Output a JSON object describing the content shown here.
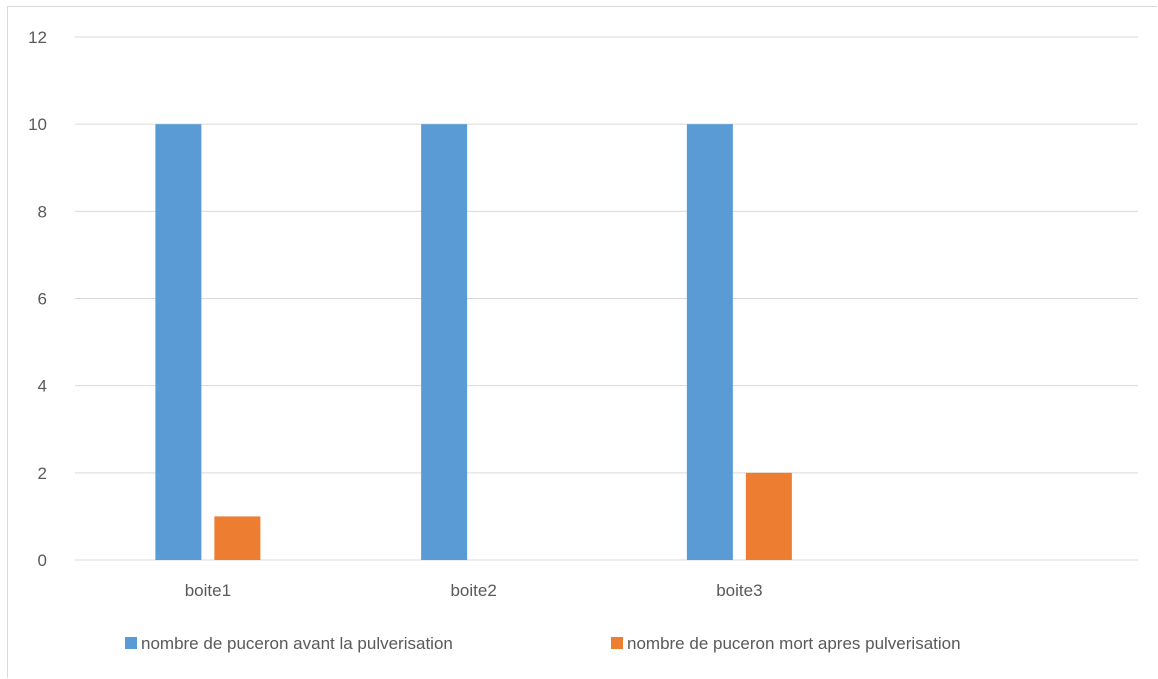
{
  "chart_data": {
    "type": "bar",
    "title": "",
    "xlabel": "",
    "ylabel": "",
    "categories": [
      "boite1",
      "boite2",
      "boite3",
      ""
    ],
    "series": [
      {
        "name": "nombre de puceron avant la pulverisation",
        "color": "#5b9bd5",
        "values": [
          10,
          10,
          10,
          null
        ]
      },
      {
        "name": "nombre de puceron mort apres pulverisation",
        "color": "#ed7d31",
        "values": [
          1,
          0,
          2,
          null
        ]
      }
    ],
    "ylim": [
      0,
      12
    ],
    "yticks": [
      0,
      2,
      4,
      6,
      8,
      10,
      12
    ],
    "grid": true,
    "legend": "bottom"
  }
}
